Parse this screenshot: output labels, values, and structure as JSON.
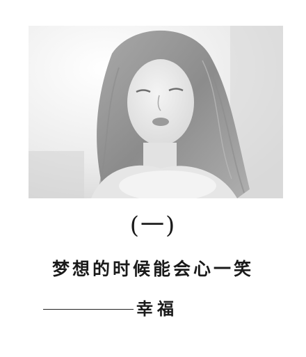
{
  "photo": {
    "subject": "girl-portrait"
  },
  "chapter": {
    "label": "(一)"
  },
  "headline": {
    "text": "梦想的时候能会心一笑"
  },
  "signature": {
    "author": "幸福"
  },
  "colors": {
    "text": "#1a1a1a",
    "photo_light": "#f2f2f2",
    "photo_mid": "#bdbdbd",
    "photo_dark": "#6e6e6e"
  }
}
